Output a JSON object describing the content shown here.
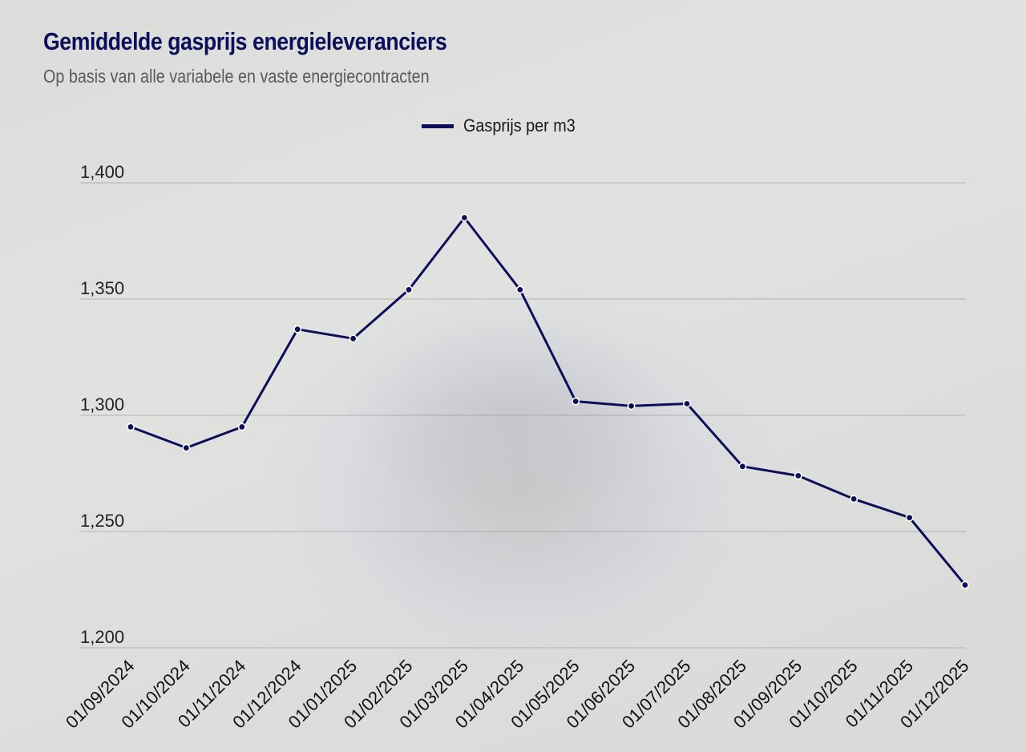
{
  "title": "Gemiddelde gasprijs energieleveranciers",
  "subtitle": "Op basis van alle variabele en vaste energiecontracten",
  "chart_data": {
    "type": "line",
    "title": "Gemiddelde gasprijs energieleveranciers",
    "subtitle": "Op basis van alle variabele en vaste energiecontracten",
    "xlabel": "",
    "ylabel": "",
    "x": [
      "01/09/2024",
      "01/10/2024",
      "01/11/2024",
      "01/12/2024",
      "01/01/2025",
      "01/02/2025",
      "01/03/2025",
      "01/04/2025",
      "01/05/2025",
      "01/06/2025",
      "01/07/2025",
      "01/08/2025",
      "01/09/2025",
      "01/10/2025",
      "01/11/2025",
      "01/12/2025"
    ],
    "series": [
      {
        "name": "Gasprijs per m3",
        "color": "#0b0f59",
        "values": [
          1.295,
          1.286,
          1.295,
          1.337,
          1.333,
          1.354,
          1.385,
          1.354,
          1.306,
          1.304,
          1.305,
          1.278,
          1.274,
          1.264,
          1.256,
          1.227
        ]
      }
    ],
    "yticks": [
      "1,200",
      "1,250",
      "1,300",
      "1,350",
      "1,400"
    ],
    "yticks_values": [
      1.2,
      1.25,
      1.3,
      1.35,
      1.4
    ],
    "ylim": [
      1.2,
      1.4
    ],
    "grid": true,
    "legend_position": "top-center"
  }
}
